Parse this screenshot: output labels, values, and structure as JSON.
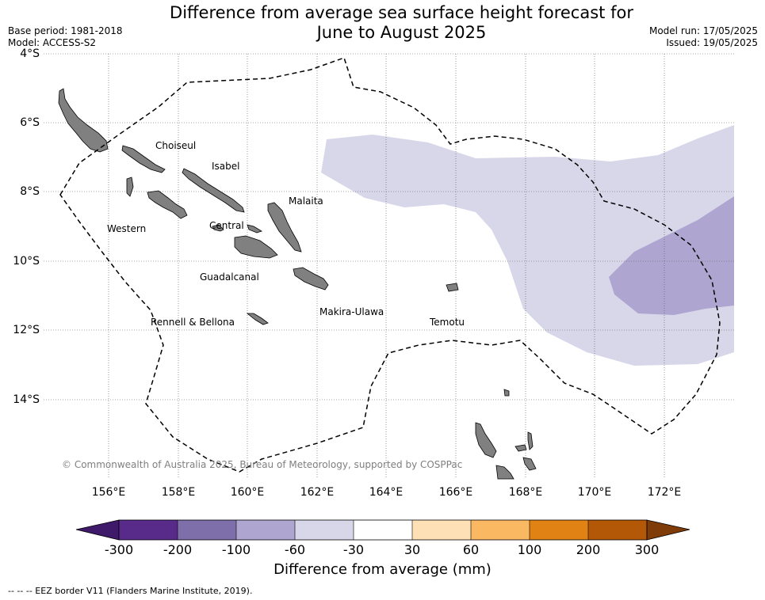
{
  "title_line1": "Difference from average sea surface height forecast for",
  "title_line2": "June to August 2025",
  "base_period": "Base period: 1981-2018",
  "model": "Model: ACCESS-S2",
  "model_run": "Model run: 17/05/2025",
  "issued": "Issued: 19/05/2025",
  "lat_labels": [
    "4°S",
    "6°S",
    "8°S",
    "10°S",
    "12°S",
    "14°S"
  ],
  "lon_labels": [
    "156°E",
    "158°E",
    "160°E",
    "162°E",
    "164°E",
    "166°E",
    "168°E",
    "170°E",
    "172°E"
  ],
  "regions": {
    "choiseul": "Choiseul",
    "isabel": "Isabel",
    "malaita": "Malaita",
    "western": "Western",
    "central": "Central",
    "guadalcanal": "Guadalcanal",
    "makira": "Makira-Ulawa",
    "rennell": "Rennell & Bellona",
    "temotu": "Temotu"
  },
  "copyright": "© Commonwealth of Australia 2025, Bureau of Meteorology, supported by COSPPac",
  "colorbar": {
    "title": "Difference from average (mm)",
    "ticks": [
      "-300",
      "-200",
      "-100",
      "-60",
      "-30",
      "30",
      "60",
      "100",
      "200",
      "300"
    ],
    "colors": [
      "#3f1a6b",
      "#582a8a",
      "#7e6fab",
      "#aea6d0",
      "#d7d7e9",
      "#ffffff",
      "#fee0b6",
      "#fbb863",
      "#e08214",
      "#b35806",
      "#7f3b08"
    ]
  },
  "footnote": "--  --  -- EEZ border V11 (Flanders Marine Institute, 2019)."
}
